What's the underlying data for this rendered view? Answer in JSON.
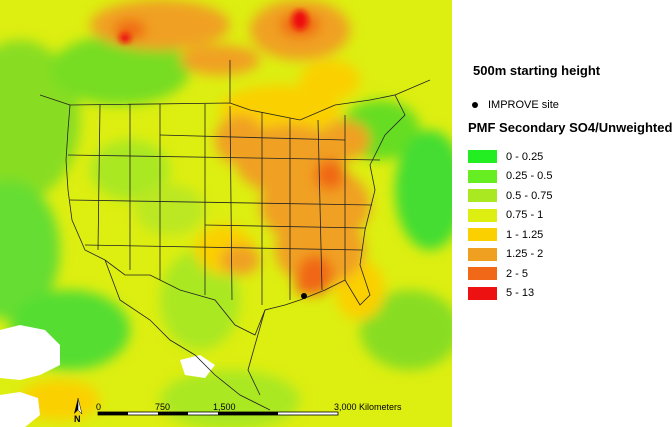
{
  "map": {
    "starting_height": "500m starting height",
    "site_legend_label": "IMPROVE site",
    "legend_title": "PMF Secondary SO4/Unweighted",
    "legend_classes": [
      {
        "label": "0 - 0.25",
        "color": "#22ee22"
      },
      {
        "label": "0.25 - 0.5",
        "color": "#66ee22"
      },
      {
        "label": "0.5 - 0.75",
        "color": "#aae822"
      },
      {
        "label": "0.75 - 1",
        "color": "#ddee11"
      },
      {
        "label": "1 - 1.25",
        "color": "#fbd000"
      },
      {
        "label": "1.25 - 2",
        "color": "#f0a020"
      },
      {
        "label": "2 - 5",
        "color": "#f06818"
      },
      {
        "label": "5 - 13",
        "color": "#ee1111"
      }
    ],
    "scale_bar": {
      "ticks": [
        "0",
        "750",
        "1,500",
        "3,000 Kilometers"
      ],
      "north_label": "N"
    },
    "ocean_color": "#ddee11",
    "border_color": "#222222",
    "site_marker_color": "#000000"
  }
}
